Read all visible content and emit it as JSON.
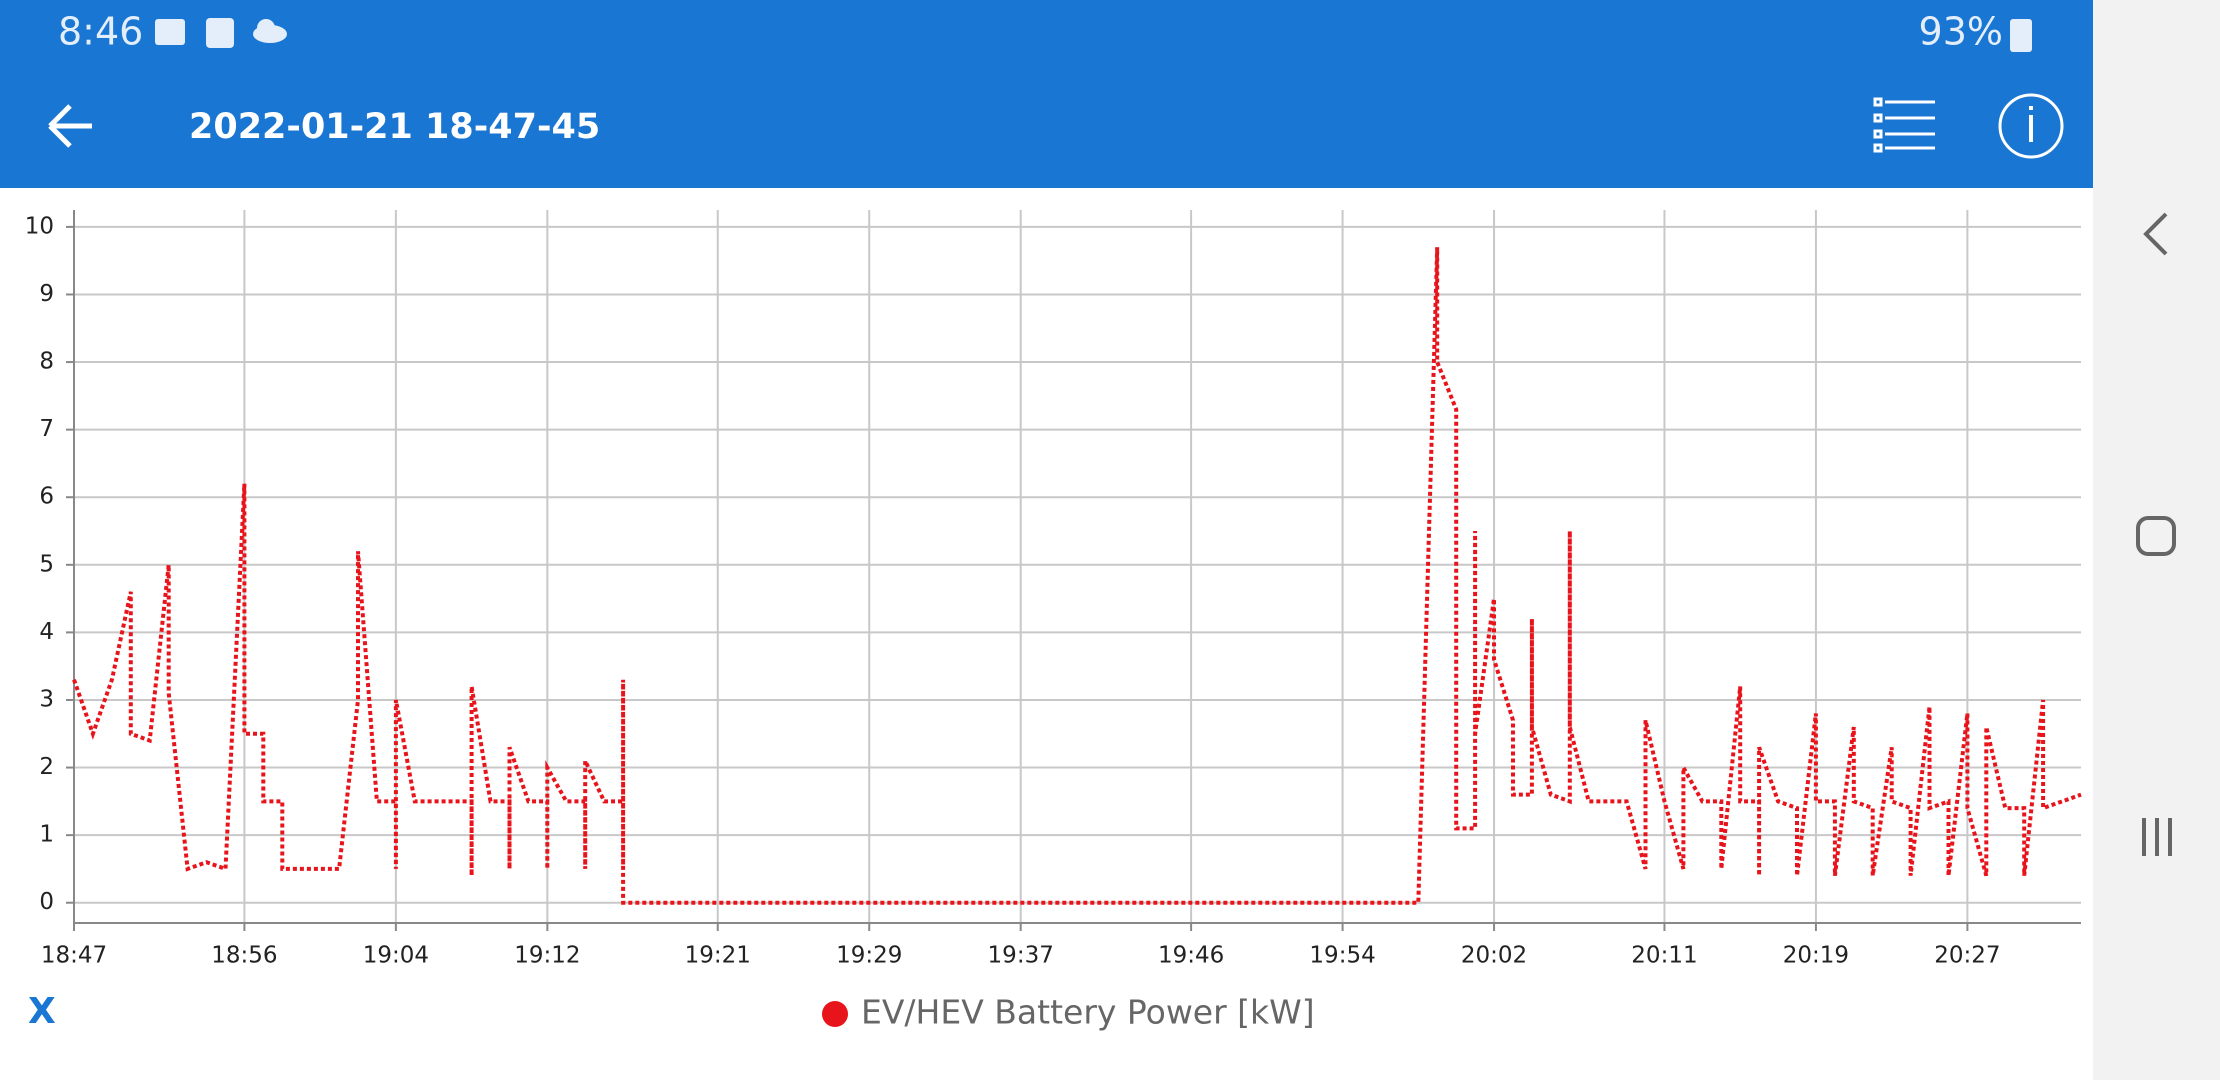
{
  "status_bar": {
    "time": "8:46",
    "battery": "93%"
  },
  "app_bar": {
    "title": "2022-01-21 18-47-45"
  },
  "close_button": "X",
  "chart_data": {
    "type": "line",
    "x": [
      "18:47",
      "18:48",
      "18:49",
      "18:50",
      "18:50",
      "18:51",
      "18:52",
      "18:52",
      "18:53",
      "18:54",
      "18:55",
      "18:56",
      "18:56",
      "18:57",
      "18:57",
      "18:58",
      "18:58",
      "18:59",
      "19:00",
      "19:01",
      "19:02",
      "19:02",
      "19:03",
      "19:04",
      "19:04",
      "19:04",
      "19:05",
      "19:06",
      "19:07",
      "19:08",
      "19:08",
      "19:08",
      "19:09",
      "19:10",
      "19:10",
      "19:10",
      "19:11",
      "19:12",
      "19:12",
      "19:12",
      "19:13",
      "19:14",
      "19:14",
      "19:14",
      "19:15",
      "19:16",
      "19:16",
      "19:16",
      "19:16",
      "19:58",
      "19:59",
      "19:59",
      "20:00",
      "20:00",
      "20:00",
      "20:01",
      "20:01",
      "20:01",
      "20:02",
      "20:02",
      "20:03",
      "20:03",
      "20:04",
      "20:04",
      "20:04",
      "20:05",
      "20:06",
      "20:06",
      "20:06",
      "20:07",
      "20:08",
      "20:09",
      "20:10",
      "20:10",
      "20:11",
      "20:12",
      "20:12",
      "20:13",
      "20:14",
      "20:14",
      "20:15",
      "20:15",
      "20:16",
      "20:16",
      "20:16",
      "20:17",
      "20:18",
      "20:18",
      "20:19",
      "20:19",
      "20:20",
      "20:20",
      "20:21",
      "20:21",
      "20:22",
      "20:22",
      "20:23",
      "20:23",
      "20:24",
      "20:24",
      "20:25",
      "20:25",
      "20:26",
      "20:26",
      "20:27",
      "20:27",
      "20:28",
      "20:28",
      "20:29",
      "20:30",
      "20:30",
      "20:31",
      "20:31",
      "20:32",
      "20:33"
    ],
    "series": [
      {
        "name": "EV/HEV Battery Power [kW]",
        "color": "#e8141b",
        "values": [
          3.3,
          2.5,
          3.3,
          4.6,
          2.5,
          2.4,
          5.0,
          3.1,
          0.5,
          0.6,
          0.5,
          6.2,
          2.5,
          2.5,
          1.5,
          1.5,
          0.5,
          0.5,
          0.5,
          0.5,
          3.0,
          5.2,
          1.5,
          1.5,
          0.5,
          3.0,
          1.5,
          1.5,
          1.5,
          1.5,
          0.4,
          3.2,
          1.5,
          1.5,
          0.5,
          2.3,
          1.5,
          1.5,
          0.5,
          2.0,
          1.5,
          1.5,
          0.5,
          2.1,
          1.5,
          1.5,
          0.5,
          3.3,
          0,
          0,
          9.7,
          8.0,
          7.3,
          6.3,
          1.1,
          1.1,
          5.5,
          2.5,
          4.5,
          3.6,
          2.7,
          1.6,
          1.6,
          4.2,
          2.6,
          1.6,
          1.5,
          5.5,
          2.6,
          1.5,
          1.5,
          1.5,
          0.5,
          2.7,
          1.5,
          0.5,
          2.0,
          1.5,
          1.5,
          0.5,
          3.2,
          1.5,
          1.5,
          0.4,
          2.3,
          1.5,
          1.4,
          0.4,
          2.8,
          1.5,
          1.5,
          0.4,
          2.6,
          1.5,
          1.4,
          0.4,
          2.3,
          1.5,
          1.4,
          0.4,
          2.9,
          1.4,
          1.5,
          0.4,
          2.8,
          1.4,
          0.4,
          2.6,
          1.4,
          1.4,
          0.4,
          3.0,
          1.4,
          1.5,
          1.6
        ]
      }
    ],
    "xlim": [
      "18:47",
      "20:33"
    ],
    "xticks": [
      "18:47",
      "18:56",
      "19:04",
      "19:12",
      "19:21",
      "19:29",
      "19:37",
      "19:46",
      "19:54",
      "20:02",
      "20:11",
      "20:19",
      "20:27"
    ],
    "ylim": [
      -0.3,
      10.25
    ],
    "yticks": [
      0,
      1,
      2,
      3,
      4,
      5,
      6,
      7,
      8,
      9,
      10
    ],
    "grid": true
  }
}
